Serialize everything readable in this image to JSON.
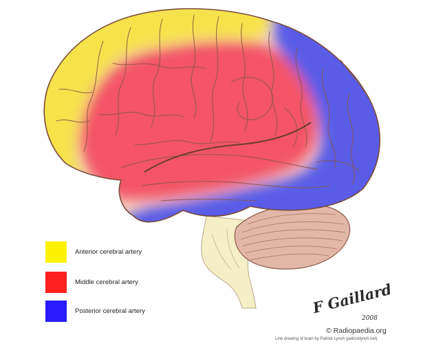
{
  "legend": {
    "items": [
      {
        "label": "Anterior cerebral artery",
        "color": "#FFF200"
      },
      {
        "label": "Middle cerebral artery",
        "color": "#FF2020"
      },
      {
        "label": "Posterior cerebral artery",
        "color": "#2A1AFF"
      }
    ]
  },
  "colors": {
    "anterior_territory": "#F6E24C",
    "middle_territory": "#F35466",
    "posterior_territory": "#5A5CE8",
    "brain_outline": "#7A4A3A",
    "cerebellum": "#E2B7A8",
    "brainstem": "#F4EFC6",
    "background": "#FFFFFF"
  },
  "watermark": {
    "signature_name": "F Gaillard",
    "signature_year": "2008",
    "copyright": "© Radiopaedia.org",
    "credit": "Line drawing of brain by Patrick Lynch (patricklynch.net)"
  }
}
